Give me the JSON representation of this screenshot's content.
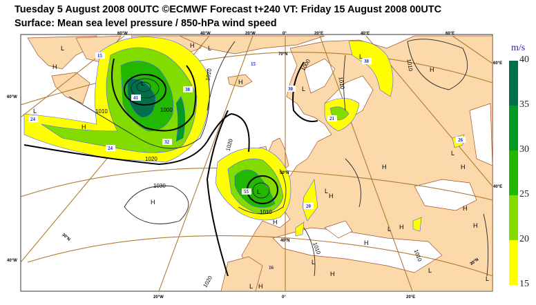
{
  "header": {
    "title": "Tuesday 5 August 2008 00UTC ©ECMWF Forecast t+240 VT: Friday 15 August 2008 00UTC",
    "subtitle": "Surface: Mean sea level pressure / 850-hPa wind speed"
  },
  "legend": {
    "unit": "m/s",
    "ticks": [
      "40",
      "35",
      "30",
      "25",
      "20",
      "15"
    ],
    "bands": [
      {
        "range": "35-40",
        "color": "#00704a"
      },
      {
        "range": "30-35",
        "color": "#009a24"
      },
      {
        "range": "25-30",
        "color": "#22b800"
      },
      {
        "range": "20-25",
        "color": "#82dc00"
      },
      {
        "range": "15-20",
        "color": "#ffff00"
      }
    ]
  },
  "colors": {
    "land": "#fcd9ab",
    "graticule": "#b07a30",
    "sea": "#ffffff"
  },
  "graticule_labels": [
    "60°W",
    "40°W",
    "20°W",
    "0°",
    "20°E",
    "40°E",
    "60°E",
    "60°W",
    "40°W",
    "20°W",
    "0°",
    "20°E",
    "60°E",
    "40°E",
    "70°N",
    "50°N",
    "40°N",
    "30°N",
    "30°N"
  ],
  "pressure_labels": [
    "1010",
    "1000",
    "1020",
    "1010",
    "1020",
    "1010",
    "1030",
    "1020",
    "1010",
    "1010",
    "1010",
    "1000",
    "1010"
  ],
  "wind_labels": [
    "15",
    "41",
    "38",
    "24",
    "24",
    "32",
    "15",
    "55",
    "20",
    "16",
    "30",
    "21",
    "30",
    "26"
  ],
  "centres": [
    "L",
    "H",
    "L",
    "H",
    "L",
    "H",
    "H",
    "L",
    "H",
    "L",
    "H",
    "L",
    "H",
    "H",
    "L",
    "H",
    "L",
    "H",
    "L",
    "H",
    "H",
    "L",
    "H",
    "L",
    "H",
    "H",
    "L",
    "H",
    "L",
    "L"
  ]
}
